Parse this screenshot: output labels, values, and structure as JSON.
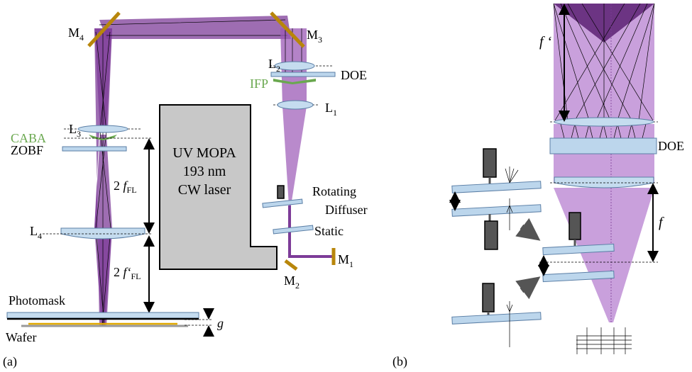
{
  "panel_a": {
    "label": "(a)",
    "m4": {
      "base": "M",
      "sub": "4"
    },
    "m3": {
      "base": "M",
      "sub": "3"
    },
    "m1": {
      "base": "M",
      "sub": "1"
    },
    "m2": {
      "base": "M",
      "sub": "2"
    },
    "l1": {
      "base": "L",
      "sub": "1"
    },
    "l2": {
      "base": "L",
      "sub": "2"
    },
    "l3": {
      "base": "L",
      "sub": "3"
    },
    "l4": {
      "base": "L",
      "sub": "4"
    },
    "doe": "DOE",
    "ifp": "IFP",
    "caba": "CABA",
    "zobf": "ZOBF",
    "laser": [
      "UV MOPA",
      "193 nm",
      "CW laser"
    ],
    "diffuser": [
      "Rotating",
      "Diffuser"
    ],
    "static": "Static",
    "dist_front": {
      "base": "2 ",
      "symbol": "f",
      "sub": "FL"
    },
    "dist_back": {
      "base": "2 ",
      "symbol": "f‘",
      "sub": "FL"
    },
    "photomask": "Photomask",
    "wafer": "Wafer",
    "gap": "g"
  },
  "panel_b": {
    "label": "(b)",
    "f_prime": "f ‘",
    "doe": "DOE",
    "f": "f"
  }
}
